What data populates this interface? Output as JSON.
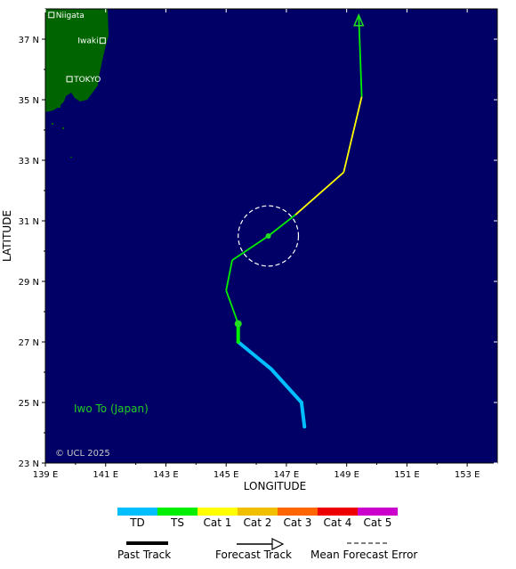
{
  "map": {
    "lon_range": [
      139,
      154
    ],
    "lat_range": [
      23,
      38
    ],
    "xlabel": "LONGITUDE",
    "ylabel": "LATITUDE",
    "x_ticks": [
      "139 E",
      "141 E",
      "143 E",
      "145 E",
      "147 E",
      "149 E",
      "151 E",
      "153 E"
    ],
    "y_ticks": [
      "23 N",
      "25 N",
      "27 N",
      "29 N",
      "31 N",
      "33 N",
      "35 N",
      "37 N"
    ],
    "ocean_color": "#000066",
    "land_color": "#006400",
    "cities": [
      {
        "name": "Niigata",
        "lon": 139.2,
        "lat": 37.8
      },
      {
        "name": "Iwaki",
        "lon": 140.9,
        "lat": 36.95
      },
      {
        "name": "TOKYO",
        "lon": 139.8,
        "lat": 35.68
      }
    ],
    "place_label": "Iwo To (Japan)",
    "copyright": "© UCL 2025"
  },
  "track": {
    "past": [
      {
        "lon": 147.6,
        "lat": 24.2,
        "cat": "TD"
      },
      {
        "lon": 147.5,
        "lat": 25.0,
        "cat": "TD"
      },
      {
        "lon": 146.5,
        "lat": 26.1,
        "cat": "TD"
      },
      {
        "lon": 145.4,
        "lat": 27.0,
        "cat": "TS"
      },
      {
        "lon": 145.4,
        "lat": 27.6,
        "cat": "TS"
      }
    ],
    "forecast": [
      {
        "lon": 145.4,
        "lat": 27.6,
        "cat": "TS"
      },
      {
        "lon": 145.0,
        "lat": 28.7,
        "cat": "TS"
      },
      {
        "lon": 145.2,
        "lat": 29.7,
        "cat": "TS"
      },
      {
        "lon": 146.4,
        "lat": 30.5,
        "cat": "TS"
      },
      {
        "lon": 147.3,
        "lat": 31.2,
        "cat": "Cat 1"
      },
      {
        "lon": 148.9,
        "lat": 32.6,
        "cat": "Cat 1"
      },
      {
        "lon": 149.5,
        "lat": 35.1,
        "cat": "TS"
      },
      {
        "lon": 149.4,
        "lat": 37.8,
        "cat": "TS"
      }
    ],
    "points": [
      {
        "lon": 145.4,
        "lat": 27.6
      },
      {
        "lon": 146.4,
        "lat": 30.5
      }
    ],
    "error_circle": {
      "lon": 146.4,
      "lat": 30.5,
      "radius_deg": 1.0
    }
  },
  "legend": {
    "categories": [
      {
        "label": "TD",
        "color": "#00bfff"
      },
      {
        "label": "TS",
        "color": "#00ee00"
      },
      {
        "label": "Cat 1",
        "color": "#ffff00"
      },
      {
        "label": "Cat 2",
        "color": "#f0c000"
      },
      {
        "label": "Cat 3",
        "color": "#ff6600"
      },
      {
        "label": "Cat 4",
        "color": "#ee0000"
      },
      {
        "label": "Cat 5",
        "color": "#cc00cc"
      }
    ],
    "past_track": "Past Track",
    "forecast_track": "Forecast Track",
    "error_label": "Mean Forecast Error"
  }
}
